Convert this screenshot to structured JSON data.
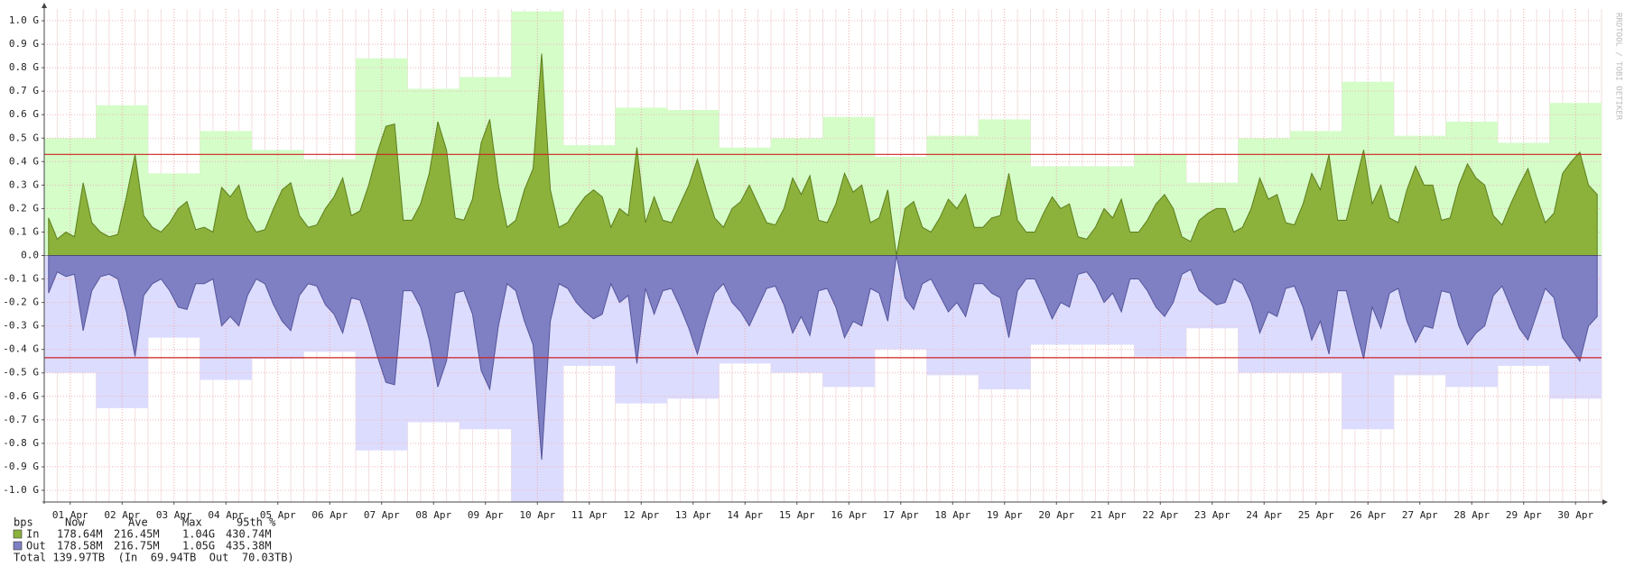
{
  "chart_data": {
    "type": "area",
    "ylim": [
      -1.05,
      1.05
    ],
    "yticks": [
      {
        "value": 1.0,
        "label": "1.0 G"
      },
      {
        "value": 0.9,
        "label": "0.9 G"
      },
      {
        "value": 0.8,
        "label": "0.8 G"
      },
      {
        "value": 0.7,
        "label": "0.7 G"
      },
      {
        "value": 0.6,
        "label": "0.6 G"
      },
      {
        "value": 0.5,
        "label": "0.5 G"
      },
      {
        "value": 0.4,
        "label": "0.4 G"
      },
      {
        "value": 0.3,
        "label": "0.3 G"
      },
      {
        "value": 0.2,
        "label": "0.2 G"
      },
      {
        "value": 0.1,
        "label": "0.1 G"
      },
      {
        "value": 0,
        "label": "0.0"
      },
      {
        "value": -0.1,
        "label": "-0.1 G"
      },
      {
        "value": -0.2,
        "label": "-0.2 G"
      },
      {
        "value": -0.3,
        "label": "-0.3 G"
      },
      {
        "value": -0.4,
        "label": "-0.4 G"
      },
      {
        "value": -0.5,
        "label": "-0.5 G"
      },
      {
        "value": -0.6,
        "label": "-0.6 G"
      },
      {
        "value": -0.7,
        "label": "-0.7 G"
      },
      {
        "value": -0.8,
        "label": "-0.8 G"
      },
      {
        "value": -0.9,
        "label": "-0.9 G"
      },
      {
        "value": -1.0,
        "label": "-1.0 G"
      }
    ],
    "grid": true,
    "categories": [
      "01 Apr",
      "02 Apr",
      "03 Apr",
      "04 Apr",
      "05 Apr",
      "06 Apr",
      "07 Apr",
      "08 Apr",
      "09 Apr",
      "10 Apr",
      "11 Apr",
      "12 Apr",
      "13 Apr",
      "14 Apr",
      "15 Apr",
      "16 Apr",
      "17 Apr",
      "18 Apr",
      "19 Apr",
      "20 Apr",
      "21 Apr",
      "22 Apr",
      "23 Apr",
      "24 Apr",
      "25 Apr",
      "26 Apr",
      "27 Apr",
      "28 Apr",
      "29 Apr",
      "30 Apr"
    ],
    "series": [
      {
        "name": "In",
        "color": "#8cb23c",
        "edge_color": "#5d7d1c",
        "max_color": "#d4fdc8",
        "percentile_color": "#cc2222",
        "percentile_95": 0.43074,
        "daily_max": [
          0.5,
          0.64,
          0.35,
          0.53,
          0.45,
          0.41,
          0.84,
          0.71,
          0.76,
          1.04,
          0.47,
          0.63,
          0.62,
          0.46,
          0.5,
          0.59,
          0.42,
          0.51,
          0.58,
          0.38,
          0.38,
          0.43,
          0.31,
          0.5,
          0.53,
          0.74,
          0.51,
          0.57,
          0.48,
          0.65
        ],
        "values": [
          [
            0.16,
            0.07,
            0.1,
            0.08,
            0.31,
            0.14
          ],
          [
            0.1,
            0.08,
            0.09,
            0.25,
            0.43,
            0.17
          ],
          [
            0.12,
            0.1,
            0.14,
            0.2,
            0.23,
            0.11
          ],
          [
            0.12,
            0.1,
            0.29,
            0.25,
            0.3,
            0.16
          ],
          [
            0.1,
            0.11,
            0.2,
            0.28,
            0.31,
            0.17
          ],
          [
            0.12,
            0.13,
            0.2,
            0.25,
            0.33,
            0.17
          ],
          [
            0.19,
            0.3,
            0.44,
            0.55,
            0.56,
            0.15
          ],
          [
            0.15,
            0.22,
            0.35,
            0.57,
            0.45,
            0.16
          ],
          [
            0.15,
            0.24,
            0.48,
            0.58,
            0.3,
            0.12
          ],
          [
            0.15,
            0.28,
            0.37,
            0.86,
            0.28,
            0.12
          ],
          [
            0.14,
            0.2,
            0.25,
            0.28,
            0.25,
            0.12
          ],
          [
            0.2,
            0.17,
            0.46,
            0.14,
            0.25,
            0.15
          ],
          [
            0.14,
            0.22,
            0.3,
            0.41,
            0.28,
            0.16
          ],
          [
            0.12,
            0.2,
            0.23,
            0.3,
            0.22,
            0.14
          ],
          [
            0.13,
            0.2,
            0.33,
            0.26,
            0.34,
            0.15
          ],
          [
            0.14,
            0.22,
            0.35,
            0.27,
            0.3,
            0.14
          ],
          [
            0.16,
            0.28,
            0.0,
            0.2,
            0.23,
            0.12
          ],
          [
            0.1,
            0.16,
            0.24,
            0.2,
            0.26,
            0.12
          ],
          [
            0.12,
            0.16,
            0.17,
            0.35,
            0.15,
            0.1
          ],
          [
            0.1,
            0.18,
            0.25,
            0.2,
            0.22,
            0.08
          ],
          [
            0.07,
            0.12,
            0.2,
            0.16,
            0.24,
            0.1
          ],
          [
            0.1,
            0.15,
            0.22,
            0.26,
            0.2,
            0.08
          ],
          [
            0.06,
            0.15,
            0.18,
            0.2,
            0.2,
            0.1
          ],
          [
            0.12,
            0.2,
            0.33,
            0.24,
            0.26,
            0.14
          ],
          [
            0.13,
            0.22,
            0.35,
            0.28,
            0.43,
            0.15
          ],
          [
            0.15,
            0.3,
            0.45,
            0.22,
            0.3,
            0.16
          ],
          [
            0.14,
            0.28,
            0.38,
            0.3,
            0.3,
            0.15
          ],
          [
            0.16,
            0.3,
            0.39,
            0.33,
            0.3,
            0.17
          ],
          [
            0.13,
            0.22,
            0.3,
            0.37,
            0.25,
            0.14
          ],
          [
            0.18,
            0.35,
            0.4,
            0.44,
            0.3,
            0.26
          ]
        ]
      },
      {
        "name": "Out",
        "color": "#7f7fc4",
        "edge_color": "#55559a",
        "max_color": "#dcdcff",
        "percentile_color": "#cc2222",
        "percentile_95": -0.43538,
        "daily_max": [
          -0.5,
          -0.65,
          -0.35,
          -0.53,
          -0.44,
          -0.41,
          -0.83,
          -0.71,
          -0.74,
          -1.05,
          -0.47,
          -0.63,
          -0.61,
          -0.46,
          -0.5,
          -0.56,
          -0.4,
          -0.51,
          -0.57,
          -0.38,
          -0.38,
          -0.43,
          -0.31,
          -0.5,
          -0.5,
          -0.74,
          -0.51,
          -0.56,
          -0.47,
          -0.61
        ],
        "values": [
          [
            -0.16,
            -0.07,
            -0.09,
            -0.08,
            -0.32,
            -0.15
          ],
          [
            -0.09,
            -0.08,
            -0.1,
            -0.24,
            -0.43,
            -0.17
          ],
          [
            -0.12,
            -0.1,
            -0.15,
            -0.22,
            -0.23,
            -0.12
          ],
          [
            -0.12,
            -0.1,
            -0.3,
            -0.26,
            -0.3,
            -0.17
          ],
          [
            -0.1,
            -0.12,
            -0.21,
            -0.28,
            -0.32,
            -0.17
          ],
          [
            -0.12,
            -0.13,
            -0.21,
            -0.25,
            -0.33,
            -0.18
          ],
          [
            -0.19,
            -0.3,
            -0.43,
            -0.54,
            -0.55,
            -0.15
          ],
          [
            -0.15,
            -0.22,
            -0.36,
            -0.56,
            -0.45,
            -0.16
          ],
          [
            -0.15,
            -0.25,
            -0.49,
            -0.57,
            -0.3,
            -0.12
          ],
          [
            -0.15,
            -0.28,
            -0.38,
            -0.87,
            -0.28,
            -0.12
          ],
          [
            -0.14,
            -0.2,
            -0.24,
            -0.27,
            -0.25,
            -0.12
          ],
          [
            -0.2,
            -0.17,
            -0.46,
            -0.14,
            -0.25,
            -0.15
          ],
          [
            -0.14,
            -0.22,
            -0.31,
            -0.42,
            -0.28,
            -0.16
          ],
          [
            -0.12,
            -0.2,
            -0.24,
            -0.3,
            -0.22,
            -0.14
          ],
          [
            -0.13,
            -0.21,
            -0.33,
            -0.26,
            -0.34,
            -0.15
          ],
          [
            -0.14,
            -0.22,
            -0.35,
            -0.28,
            -0.3,
            -0.14
          ],
          [
            -0.16,
            -0.28,
            0.0,
            -0.18,
            -0.23,
            -0.12
          ],
          [
            -0.1,
            -0.17,
            -0.24,
            -0.2,
            -0.26,
            -0.12
          ],
          [
            -0.12,
            -0.16,
            -0.18,
            -0.35,
            -0.15,
            -0.1
          ],
          [
            -0.1,
            -0.18,
            -0.27,
            -0.2,
            -0.22,
            -0.08
          ],
          [
            -0.07,
            -0.12,
            -0.2,
            -0.16,
            -0.24,
            -0.1
          ],
          [
            -0.1,
            -0.15,
            -0.22,
            -0.26,
            -0.2,
            -0.08
          ],
          [
            -0.06,
            -0.15,
            -0.18,
            -0.21,
            -0.2,
            -0.1
          ],
          [
            -0.12,
            -0.2,
            -0.33,
            -0.24,
            -0.26,
            -0.14
          ],
          [
            -0.13,
            -0.22,
            -0.36,
            -0.28,
            -0.42,
            -0.15
          ],
          [
            -0.15,
            -0.3,
            -0.44,
            -0.22,
            -0.31,
            -0.16
          ],
          [
            -0.14,
            -0.28,
            -0.37,
            -0.3,
            -0.31,
            -0.15
          ],
          [
            -0.16,
            -0.3,
            -0.38,
            -0.33,
            -0.3,
            -0.17
          ],
          [
            -0.13,
            -0.22,
            -0.31,
            -0.36,
            -0.25,
            -0.14
          ],
          [
            -0.18,
            -0.35,
            -0.4,
            -0.45,
            -0.3,
            -0.26
          ]
        ]
      }
    ],
    "watermark": "RRDTOOL / TOBI OETIKER",
    "legend": {
      "unit": "bps",
      "headers": [
        "Now",
        "Ave",
        "Max",
        "95th %"
      ],
      "rows": [
        [
          "178.64M",
          "216.45M",
          "1.04G",
          "430.74M"
        ],
        [
          "178.58M",
          "216.75M",
          "1.05G",
          "435.38M"
        ]
      ],
      "total": "Total 139.97TB  (In  69.94TB  Out  70.03TB)"
    }
  }
}
